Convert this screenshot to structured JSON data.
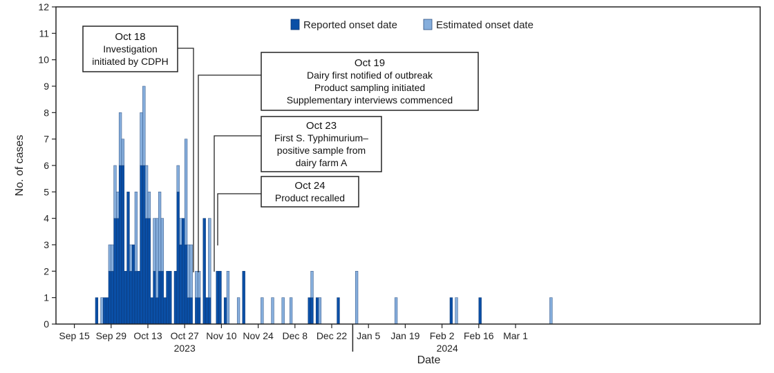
{
  "chart_data": {
    "type": "bar",
    "stacked": true,
    "xlabel": "Date",
    "ylabel": "No. of cases",
    "ylim": [
      0,
      12
    ],
    "yticks": [
      0,
      1,
      2,
      3,
      4,
      5,
      6,
      7,
      8,
      9,
      10,
      11,
      12
    ],
    "x_start": "2023-09-15",
    "x_tick_labels": [
      "Sep 15",
      "Sep 29",
      "Oct 13",
      "Oct 27",
      "Nov 10",
      "Nov 24",
      "Dec 8",
      "Dec 22",
      "Jan 5",
      "Jan 19",
      "Feb 2",
      "Feb 16",
      "Mar 1"
    ],
    "x_tick_dates": [
      "2023-09-15",
      "2023-09-29",
      "2023-10-13",
      "2023-10-27",
      "2023-11-10",
      "2023-11-24",
      "2023-12-08",
      "2023-12-22",
      "2024-01-05",
      "2024-01-19",
      "2024-02-02",
      "2024-02-16",
      "2024-03-01"
    ],
    "year_labels": [
      {
        "text": "2023",
        "near": "2023-10-27"
      },
      {
        "text": "2024",
        "near": "2024-02-04"
      }
    ],
    "legend": {
      "position": "top-center",
      "items": [
        {
          "name": "Reported onset date",
          "color": "#0a4fa6"
        },
        {
          "name": "Estimated onset date",
          "color": "#86aedc"
        }
      ]
    },
    "series": [
      {
        "name": "Reported onset date",
        "color": "#0a4fa6",
        "border": "#0a3570"
      },
      {
        "name": "Estimated onset date",
        "color": "#86aedc",
        "border": "#2c4f80"
      }
    ],
    "counts": [
      [
        "2023-09-23",
        1,
        0
      ],
      [
        "2023-09-25",
        0,
        1
      ],
      [
        "2023-09-26",
        1,
        0
      ],
      [
        "2023-09-27",
        1,
        0
      ],
      [
        "2023-09-28",
        2,
        1
      ],
      [
        "2023-09-29",
        2,
        1
      ],
      [
        "2023-09-30",
        4,
        2
      ],
      [
        "2023-10-01",
        4,
        1
      ],
      [
        "2023-10-02",
        6,
        2
      ],
      [
        "2023-10-03",
        6,
        1
      ],
      [
        "2023-10-04",
        2,
        0
      ],
      [
        "2023-10-05",
        5,
        0
      ],
      [
        "2023-10-06",
        2,
        1
      ],
      [
        "2023-10-07",
        3,
        0
      ],
      [
        "2023-10-08",
        2,
        3
      ],
      [
        "2023-10-09",
        2,
        0
      ],
      [
        "2023-10-10",
        6,
        2
      ],
      [
        "2023-10-11",
        6,
        3
      ],
      [
        "2023-10-12",
        4,
        2
      ],
      [
        "2023-10-13",
        4,
        1
      ],
      [
        "2023-10-14",
        1,
        0
      ],
      [
        "2023-10-15",
        2,
        2
      ],
      [
        "2023-10-16",
        1,
        3
      ],
      [
        "2023-10-17",
        2,
        3
      ],
      [
        "2023-10-18",
        2,
        2
      ],
      [
        "2023-10-19",
        1,
        0
      ],
      [
        "2023-10-20",
        2,
        0
      ],
      [
        "2023-10-21",
        2,
        0
      ],
      [
        "2023-10-23",
        2,
        0
      ],
      [
        "2023-10-24",
        5,
        1
      ],
      [
        "2023-10-25",
        3,
        1
      ],
      [
        "2023-10-26",
        4,
        0
      ],
      [
        "2023-10-27",
        3,
        4
      ],
      [
        "2023-10-28",
        1,
        2
      ],
      [
        "2023-10-29",
        1,
        2
      ],
      [
        "2023-10-31",
        1,
        1
      ],
      [
        "2023-11-01",
        1,
        1
      ],
      [
        "2023-11-03",
        4,
        0
      ],
      [
        "2023-11-04",
        1,
        0
      ],
      [
        "2023-11-05",
        1,
        3
      ],
      [
        "2023-11-08",
        2,
        0
      ],
      [
        "2023-11-09",
        2,
        0
      ],
      [
        "2023-11-11",
        1,
        0
      ],
      [
        "2023-11-12",
        0,
        2
      ],
      [
        "2023-11-16",
        0,
        1
      ],
      [
        "2023-11-18",
        2,
        0
      ],
      [
        "2023-11-25",
        0,
        1
      ],
      [
        "2023-11-29",
        0,
        1
      ],
      [
        "2023-12-03",
        0,
        1
      ],
      [
        "2023-12-06",
        0,
        1
      ],
      [
        "2023-12-13",
        1,
        0
      ],
      [
        "2023-12-14",
        1,
        1
      ],
      [
        "2023-12-16",
        1,
        0
      ],
      [
        "2023-12-17",
        0,
        1
      ],
      [
        "2023-12-24",
        1,
        0
      ],
      [
        "2023-12-31",
        0,
        2
      ],
      [
        "2024-01-15",
        0,
        1
      ],
      [
        "2024-02-05",
        1,
        0
      ],
      [
        "2024-02-07",
        0,
        1
      ],
      [
        "2024-02-16",
        1,
        0
      ],
      [
        "2024-03-14",
        0,
        1
      ]
    ],
    "annotations": [
      {
        "date": "Oct 18",
        "lines": [
          "Investigation",
          "initiated by CDPH"
        ],
        "target": "2023-10-18"
      },
      {
        "date": "Oct 19",
        "lines": [
          "Dairy first notified of outbreak",
          "Product sampling initiated",
          "Supplementary interviews commenced"
        ],
        "target": "2023-10-19"
      },
      {
        "date": "Oct 23",
        "lines": [
          "First S. Typhimurium–",
          "positive sample from",
          "dairy farm A"
        ],
        "target": "2023-10-23"
      },
      {
        "date": "Oct 24",
        "lines": [
          "Product recalled"
        ],
        "target": "2023-10-24"
      }
    ]
  }
}
